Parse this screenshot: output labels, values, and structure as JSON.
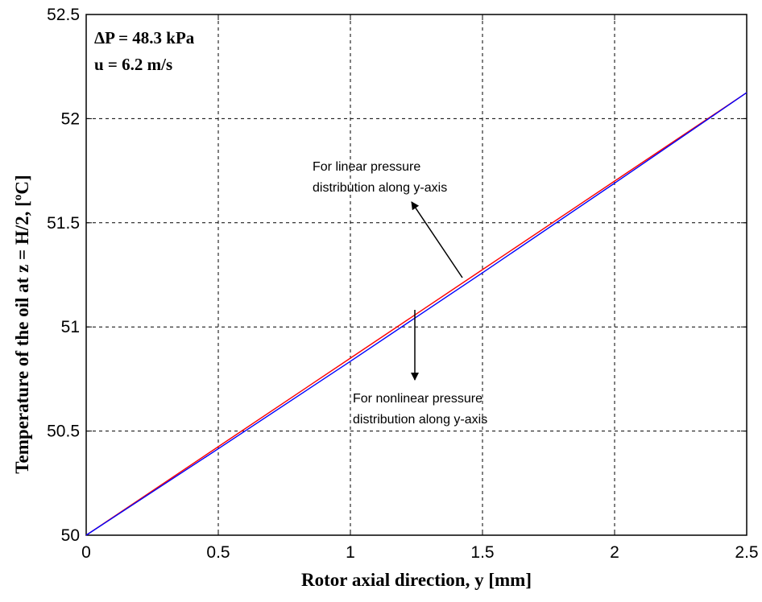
{
  "chart_data": {
    "type": "line",
    "xlabel": "Rotor axial direction, y [mm]",
    "ylabel": "Temperature of the oil at z = H/2, [ºC]",
    "xlim": [
      0,
      2.5
    ],
    "ylim": [
      50,
      52.5
    ],
    "x_ticks": [
      "0",
      "0.5",
      "1",
      "1.5",
      "2",
      "2.5"
    ],
    "y_ticks": [
      "50",
      "50.5",
      "51",
      "51.5",
      "52",
      "52.5"
    ],
    "grid": true,
    "series": [
      {
        "color": "#ff0000",
        "x": [
          0,
          0.5,
          1,
          1.5,
          2,
          2.5
        ],
        "y": [
          50,
          50.425,
          50.85,
          51.275,
          51.7,
          52.125
        ]
      },
      {
        "color": "#0000ff",
        "x": [
          0,
          0.5,
          1,
          1.5,
          2,
          2.5
        ],
        "y": [
          50,
          50.415,
          50.835,
          51.26,
          51.69,
          52.125
        ]
      }
    ],
    "info_lines": [
      "ΔP = 48.3 kPa",
      "u = 6.2 m/s"
    ],
    "annotations": [
      {
        "lines": [
          "For linear pressure",
          "distribution along y-axis"
        ],
        "target_series": 0
      },
      {
        "lines": [
          "For nonlinear pressure",
          "distribution along y-axis"
        ],
        "target_series": 1
      }
    ]
  }
}
